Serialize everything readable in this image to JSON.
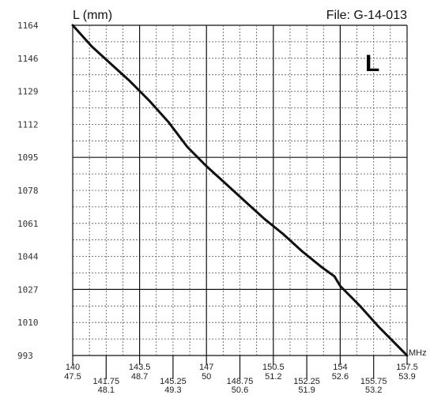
{
  "header": {
    "file_label": "File: G-14-013",
    "corner_letter": "L"
  },
  "chart_data": {
    "type": "line",
    "title": "",
    "ylabel": "L (mm)",
    "xlabel": "MHz",
    "ylim": [
      993,
      1164
    ],
    "xlim": [
      140,
      157.5
    ],
    "y_ticks": [
      "1164",
      "1146",
      "1129",
      "1112",
      "1095",
      "1078",
      "1061",
      "1044",
      "1027",
      "1010",
      "993"
    ],
    "x_ticks_top": [
      {
        "top": "140",
        "bottom": "47.5"
      },
      {
        "top": "143.5",
        "bottom": "48.7"
      },
      {
        "top": "147",
        "bottom": "50"
      },
      {
        "top": "150.5",
        "bottom": "51.2"
      },
      {
        "top": "154",
        "bottom": "52.6"
      },
      {
        "top": "157.5",
        "bottom": "53.9"
      }
    ],
    "x_ticks_bottom": [
      {
        "top": "141.75",
        "bottom": "48.1"
      },
      {
        "top": "145.25",
        "bottom": "49.3"
      },
      {
        "top": "148.75",
        "bottom": "50.6"
      },
      {
        "top": "152.25",
        "bottom": "51.9"
      },
      {
        "top": "155.75",
        "bottom": "53.2"
      }
    ],
    "grid": true,
    "series": [
      {
        "x": [
          140,
          141,
          142,
          143,
          144,
          145,
          146,
          147,
          148,
          149,
          150,
          151,
          152,
          153,
          153.7,
          154,
          155,
          156,
          157.5
        ],
        "y": [
          1164,
          1153,
          1144,
          1135,
          1125,
          1114,
          1101,
          1091,
          1082,
          1073,
          1064,
          1056,
          1047,
          1039,
          1034,
          1029,
          1019,
          1008,
          993
        ]
      }
    ]
  }
}
